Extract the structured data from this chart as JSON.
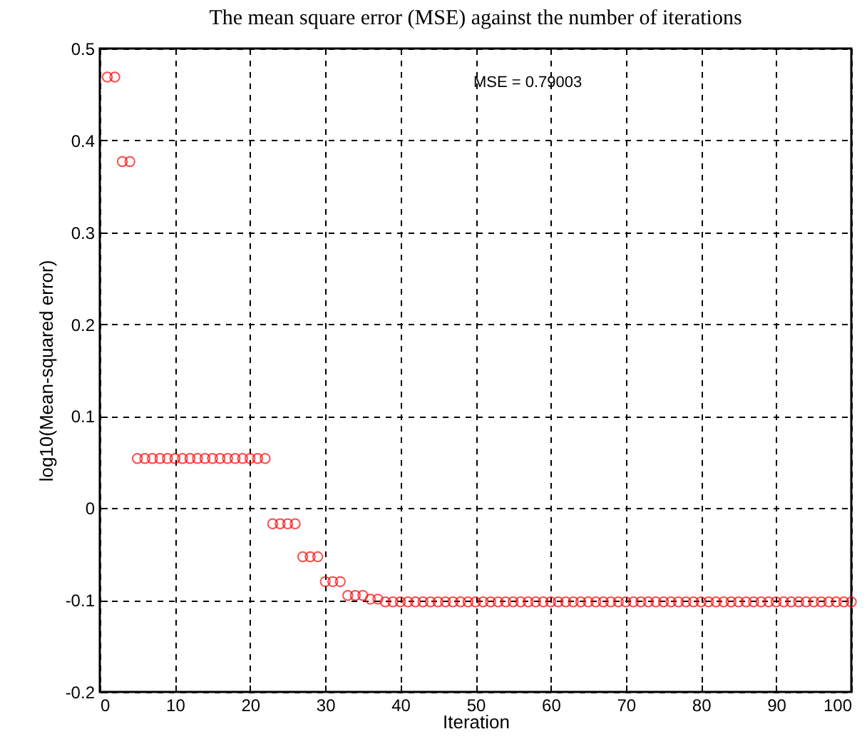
{
  "chart_data": {
    "type": "scatter",
    "title": "The mean square error (MSE) against the number of iterations",
    "xlabel": "Iteration",
    "ylabel": "log10(Mean-squared error)",
    "annotations": [
      "MSE = 0.79003"
    ],
    "x": [
      1,
      2,
      3,
      4,
      5,
      6,
      7,
      8,
      9,
      10,
      11,
      12,
      13,
      14,
      15,
      16,
      17,
      18,
      19,
      20,
      21,
      22,
      23,
      24,
      25,
      26,
      27,
      28,
      29,
      30,
      31,
      32,
      33,
      34,
      35,
      36,
      37,
      38,
      39,
      40,
      41,
      42,
      43,
      44,
      45,
      46,
      47,
      48,
      49,
      50,
      51,
      52,
      53,
      54,
      55,
      56,
      57,
      58,
      59,
      60,
      61,
      62,
      63,
      64,
      65,
      66,
      67,
      68,
      69,
      70,
      71,
      72,
      73,
      74,
      75,
      76,
      77,
      78,
      79,
      80,
      81,
      82,
      83,
      84,
      85,
      86,
      87,
      88,
      89,
      90,
      91,
      92,
      93,
      94,
      95,
      96,
      97,
      98,
      99,
      100
    ],
    "series": [
      {
        "color": "#ff0000",
        "values": [
          0.469,
          0.469,
          0.377,
          0.377,
          0.054,
          0.054,
          0.054,
          0.054,
          0.054,
          0.054,
          0.054,
          0.054,
          0.054,
          0.054,
          0.054,
          0.054,
          0.054,
          0.054,
          0.054,
          0.054,
          0.054,
          0.054,
          -0.017,
          -0.017,
          -0.017,
          -0.017,
          -0.053,
          -0.053,
          -0.053,
          -0.08,
          -0.08,
          -0.08,
          -0.095,
          -0.095,
          -0.095,
          -0.099,
          -0.099,
          -0.102,
          -0.102,
          -0.102,
          -0.102,
          -0.102,
          -0.102,
          -0.102,
          -0.102,
          -0.102,
          -0.102,
          -0.102,
          -0.102,
          -0.102,
          -0.102,
          -0.102,
          -0.102,
          -0.102,
          -0.102,
          -0.102,
          -0.102,
          -0.102,
          -0.102,
          -0.102,
          -0.102,
          -0.102,
          -0.102,
          -0.102,
          -0.102,
          -0.102,
          -0.102,
          -0.102,
          -0.102,
          -0.102,
          -0.102,
          -0.102,
          -0.102,
          -0.102,
          -0.102,
          -0.102,
          -0.102,
          -0.102,
          -0.102,
          -0.102,
          -0.102,
          -0.102,
          -0.102,
          -0.102,
          -0.102,
          -0.102,
          -0.102,
          -0.102,
          -0.102,
          -0.102,
          -0.102,
          -0.102,
          -0.102,
          -0.102,
          -0.102,
          -0.102,
          -0.102,
          -0.102,
          -0.102,
          -0.102
        ]
      }
    ],
    "xlim": [
      0,
      100
    ],
    "xticks": [
      0,
      10,
      20,
      30,
      40,
      50,
      60,
      70,
      80,
      90,
      100
    ],
    "ylim": [
      -0.2,
      0.5
    ],
    "yticks": [
      -0.2,
      -0.1,
      0,
      0.1,
      0.2,
      0.3,
      0.4,
      0.5
    ],
    "grid": true,
    "marker": "circle"
  }
}
